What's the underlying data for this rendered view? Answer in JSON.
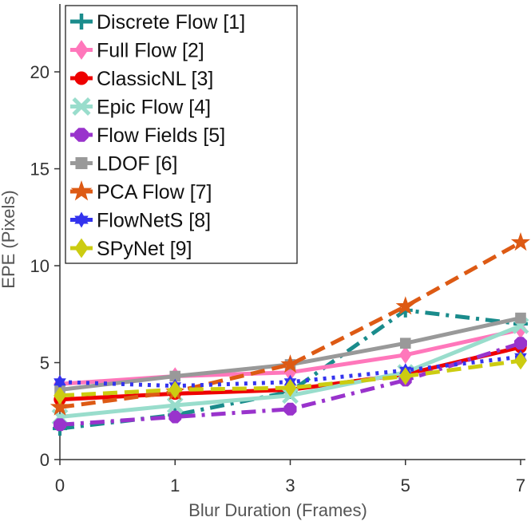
{
  "chart_data": {
    "type": "line",
    "title": "",
    "xlabel": "Blur Duration (Frames)",
    "ylabel": "EPE (Pixels)",
    "categories": [
      "0",
      "1",
      "3",
      "5",
      "7"
    ],
    "ylim": [
      0,
      23.5
    ],
    "yticks": [
      0,
      5,
      10,
      15,
      20
    ],
    "grid": false,
    "legend_position": "top-left",
    "series": [
      {
        "name": "Discrete Flow [1]",
        "values": [
          1.6,
          2.3,
          3.5,
          7.7,
          7.0
        ],
        "color": "#1a8c8c",
        "dash": "dashdot",
        "marker": "plus-icon"
      },
      {
        "name": "Full Flow [2]",
        "values": [
          3.9,
          4.3,
          4.5,
          5.4,
          6.7
        ],
        "color": "#ff77bb",
        "dash": "solid",
        "marker": "diamond-icon"
      },
      {
        "name": "ClassicNL [3]",
        "values": [
          3.1,
          3.4,
          3.6,
          4.4,
          5.8
        ],
        "color": "#ee0000",
        "dash": "solid",
        "marker": "circle-icon"
      },
      {
        "name": "Epic Flow [4]",
        "values": [
          2.2,
          2.8,
          3.3,
          4.5,
          6.9
        ],
        "color": "#99ddcc",
        "dash": "solid",
        "marker": "x-icon"
      },
      {
        "name": "Flow Fields [5]",
        "values": [
          1.8,
          2.2,
          2.6,
          4.1,
          6.0
        ],
        "color": "#9933cc",
        "dash": "dashdot",
        "marker": "octagon-icon"
      },
      {
        "name": "LDOF [6]",
        "values": [
          3.6,
          4.3,
          4.9,
          6.0,
          7.3
        ],
        "color": "#999999",
        "dash": "solid",
        "marker": "square-icon"
      },
      {
        "name": "PCA Flow [7]",
        "values": [
          2.7,
          3.5,
          4.9,
          7.9,
          11.2
        ],
        "color": "#dd5a14",
        "dash": "dashed",
        "marker": "star-icon"
      },
      {
        "name": "FlowNetS [8]",
        "values": [
          4.0,
          3.8,
          4.0,
          4.6,
          5.3
        ],
        "color": "#3333ee",
        "dash": "dotted",
        "marker": "hexagram-icon"
      },
      {
        "name": "SPyNet [9]",
        "values": [
          3.3,
          3.6,
          3.7,
          4.3,
          5.1
        ],
        "color": "#cccc11",
        "dash": "dashed",
        "marker": "diamond-icon"
      }
    ]
  }
}
